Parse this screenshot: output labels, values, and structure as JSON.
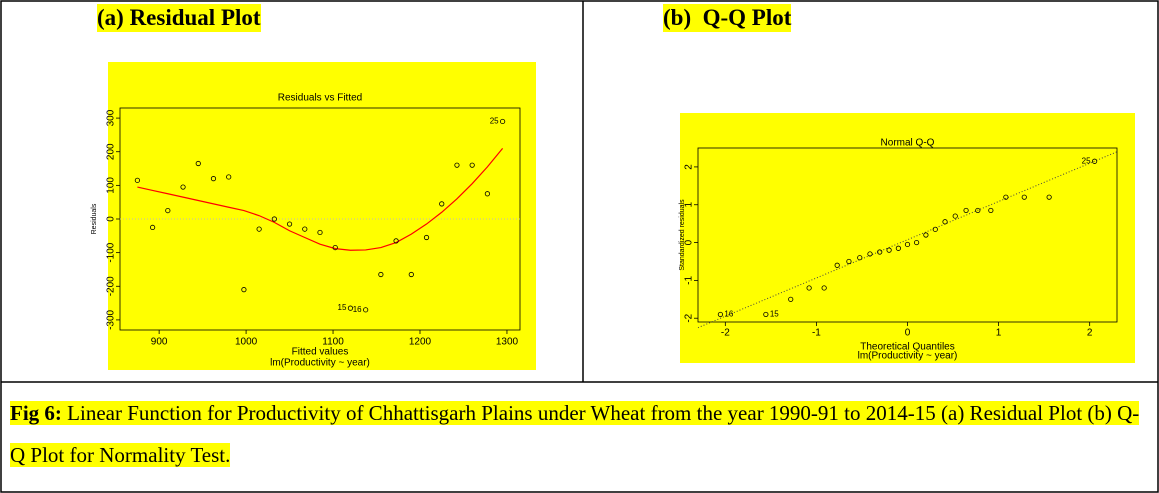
{
  "panels": [
    "(a) Residual Plot",
    "(b)  Q-Q Plot"
  ],
  "caption": {
    "label": "Fig 6:",
    "text": " Linear Function for Productivity of Chhattisgarh Plains under Wheat from the year 1990-91 to 2014-15 (a) Residual Plot (b) Q-Q Plot for Normality Test."
  },
  "chart_data": [
    {
      "type": "scatter",
      "title": "Residuals vs Fitted",
      "xlabel": "Fitted values",
      "ylabel": "Residuals",
      "subtitle": "lm(Productivity ~ year)",
      "x": [
        875,
        892.5,
        910,
        927.5,
        945,
        962.5,
        980,
        997.5,
        1015,
        1032.5,
        1050,
        1067.5,
        1085,
        1102.5,
        1120,
        1137.5,
        1155,
        1172.5,
        1190,
        1207.5,
        1225,
        1242.5,
        1260,
        1277.5,
        1295
      ],
      "values": [
        115,
        -25,
        25,
        95,
        165,
        120,
        125,
        -210,
        -30,
        0,
        -15,
        -30,
        -40,
        -85,
        -265,
        -270,
        -165,
        -65,
        -165,
        -55,
        45,
        160,
        160,
        75,
        290
      ],
      "point_labels": [
        null,
        null,
        null,
        null,
        null,
        null,
        null,
        null,
        null,
        null,
        null,
        null,
        null,
        null,
        "15",
        "16",
        null,
        null,
        null,
        null,
        null,
        null,
        null,
        null,
        "25"
      ],
      "smooth": {
        "color": "#ff0000",
        "values": [
          95,
          85,
          75,
          65,
          55,
          45,
          35,
          25,
          10,
          -10,
          -35,
          -55,
          -75,
          -88,
          -93,
          -92,
          -85,
          -70,
          -45,
          -15,
          20,
          60,
          105,
          155,
          210
        ]
      },
      "zero_line": 0,
      "color": "#000000",
      "xlim": [
        855,
        1315
      ],
      "ylim": [
        -330,
        330
      ],
      "xticks": [
        900,
        1000,
        1100,
        1200,
        1300
      ],
      "yticks": [
        -300,
        -200,
        -100,
        0,
        100,
        200,
        300
      ]
    },
    {
      "type": "scatter",
      "title": "Normal Q-Q",
      "xlabel": "Theoretical Quantiles",
      "ylabel": "Standardized residuals",
      "subtitle": "lm(Productivity ~ year)",
      "x": [
        -2.054,
        -1.555,
        -1.282,
        -1.08,
        -0.915,
        -0.772,
        -0.643,
        -0.524,
        -0.412,
        -0.305,
        -0.202,
        -0.1,
        0,
        0.1,
        0.202,
        0.305,
        0.412,
        0.524,
        0.643,
        0.772,
        0.915,
        1.08,
        1.282,
        1.555,
        2.054
      ],
      "values": [
        -1.9,
        -1.9,
        -1.5,
        -1.2,
        -1.2,
        -0.6,
        -0.5,
        -0.4,
        -0.3,
        -0.25,
        -0.2,
        -0.15,
        -0.05,
        0,
        0.2,
        0.35,
        0.55,
        0.7,
        0.85,
        0.85,
        0.85,
        1.2,
        1.2,
        1.2,
        2.15
      ],
      "point_labels": [
        "16",
        "15",
        null,
        null,
        null,
        null,
        null,
        null,
        null,
        null,
        null,
        null,
        null,
        null,
        null,
        null,
        null,
        null,
        null,
        null,
        null,
        null,
        null,
        null,
        "25"
      ],
      "qqline": {
        "x": [
          -2.3,
          2.3
        ],
        "y": [
          -2.25,
          2.4
        ]
      },
      "color": "#000000",
      "xlim": [
        -2.3,
        2.3
      ],
      "ylim": [
        -2.1,
        2.5
      ],
      "xticks": [
        -2,
        -1,
        0,
        1,
        2
      ],
      "yticks": [
        -2,
        -1,
        0,
        1,
        2
      ]
    }
  ]
}
